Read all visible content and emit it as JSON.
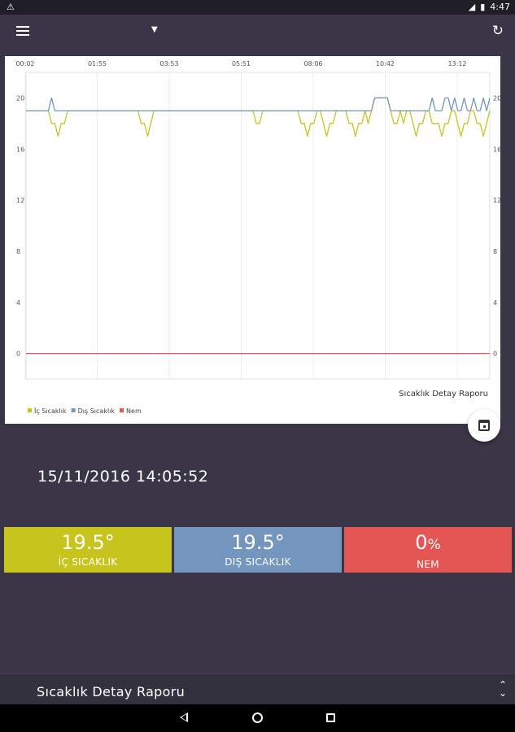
{
  "status_bar": {
    "time": "4:47",
    "warning_icon": "warning-icon",
    "signal_icon": "signal-off-icon",
    "battery_icon": "battery-icon"
  },
  "app_bar": {
    "menu_icon": "hamburger-menu-icon",
    "dropdown_icon": "caret-down-icon",
    "refresh_icon": "refresh-icon"
  },
  "chart_data": {
    "type": "line",
    "x_ticks": [
      "00:02",
      "01:55",
      "03:53",
      "05:51",
      "08:06",
      "10:42",
      "13:12"
    ],
    "y_ticks": [
      0,
      4,
      8,
      12,
      16,
      20
    ],
    "ylim": [
      -2,
      22
    ],
    "caption": "Sıcaklık Detay Raporu",
    "grid": "vertical",
    "legend_position": "bottom-left",
    "series": [
      {
        "name": "İç Sıcaklık",
        "color": "#c8c41e",
        "values": [
          19,
          19,
          19,
          19,
          19,
          19,
          19,
          19,
          18,
          18,
          17,
          18,
          18,
          19,
          19,
          19,
          19,
          19,
          19,
          19,
          19,
          19,
          19,
          19,
          19,
          19,
          19,
          19,
          19,
          19,
          19,
          19,
          19,
          19,
          19,
          19,
          18,
          18,
          17,
          18,
          19,
          19,
          19,
          19,
          19,
          19,
          19,
          19,
          19,
          19,
          19,
          19,
          19,
          19,
          19,
          19,
          19,
          19,
          19,
          19,
          19,
          19,
          19,
          19,
          19,
          19,
          19,
          19,
          19,
          19,
          19,
          19,
          18,
          18,
          19,
          19,
          19,
          19,
          19,
          19,
          19,
          19,
          19,
          19,
          19,
          19,
          18,
          18,
          17,
          18,
          18,
          19,
          19,
          18,
          17,
          18,
          18,
          19,
          19,
          19,
          19,
          18,
          18,
          17,
          18,
          18,
          19,
          18,
          19,
          20,
          20,
          20,
          20,
          20,
          19,
          18,
          18,
          19,
          18,
          19,
          19,
          18,
          17,
          18,
          18,
          19,
          19,
          18,
          18,
          18,
          17,
          18,
          18,
          19,
          19,
          18,
          17,
          18,
          18,
          19,
          19,
          18,
          18,
          17,
          18,
          19
        ]
      },
      {
        "name": "Dış Sıcaklık",
        "color": "#7395be",
        "values": [
          19,
          19,
          19,
          19,
          19,
          19,
          19,
          19,
          20,
          19,
          19,
          19,
          19,
          19,
          19,
          19,
          19,
          19,
          19,
          19,
          19,
          19,
          19,
          19,
          19,
          19,
          19,
          19,
          19,
          19,
          19,
          19,
          19,
          19,
          19,
          19,
          19,
          19,
          19,
          19,
          19,
          19,
          19,
          19,
          19,
          19,
          19,
          19,
          19,
          19,
          19,
          19,
          19,
          19,
          19,
          19,
          19,
          19,
          19,
          19,
          19,
          19,
          19,
          19,
          19,
          19,
          19,
          19,
          19,
          19,
          19,
          19,
          19,
          19,
          19,
          19,
          19,
          19,
          19,
          19,
          19,
          19,
          19,
          19,
          19,
          19,
          19,
          19,
          19,
          19,
          19,
          19,
          19,
          19,
          19,
          19,
          19,
          19,
          19,
          19,
          19,
          19,
          19,
          19,
          19,
          19,
          19,
          19,
          19,
          20,
          20,
          20,
          20,
          20,
          19,
          19,
          19,
          19,
          19,
          19,
          19,
          19,
          19,
          19,
          19,
          19,
          19,
          20,
          19,
          19,
          19,
          20,
          20,
          19,
          20,
          19,
          19,
          20,
          19,
          19,
          20,
          19,
          19,
          20,
          19,
          20
        ]
      },
      {
        "name": "Nem",
        "color": "#e35653",
        "values": [
          0,
          0,
          0,
          0,
          0,
          0,
          0,
          0,
          0,
          0,
          0,
          0,
          0,
          0,
          0,
          0,
          0,
          0,
          0,
          0,
          0,
          0,
          0,
          0,
          0,
          0,
          0,
          0,
          0,
          0,
          0,
          0,
          0,
          0,
          0,
          0,
          0,
          0,
          0,
          0,
          0,
          0,
          0,
          0,
          0,
          0,
          0,
          0,
          0,
          0,
          0,
          0,
          0,
          0,
          0,
          0,
          0,
          0,
          0,
          0,
          0,
          0,
          0,
          0,
          0,
          0,
          0,
          0,
          0,
          0,
          0,
          0,
          0,
          0,
          0,
          0,
          0,
          0,
          0,
          0,
          0,
          0,
          0,
          0,
          0,
          0,
          0,
          0,
          0,
          0,
          0,
          0,
          0,
          0,
          0,
          0,
          0,
          0,
          0,
          0,
          0,
          0,
          0,
          0,
          0,
          0,
          0,
          0,
          0,
          0,
          0,
          0,
          0,
          0,
          0,
          0,
          0,
          0,
          0,
          0,
          0,
          0,
          0,
          0,
          0,
          0,
          0,
          0,
          0,
          0,
          0,
          0,
          0,
          0,
          0,
          0,
          0,
          0,
          0,
          0,
          0,
          0,
          0,
          0,
          0,
          0
        ]
      }
    ]
  },
  "fab": {
    "icon": "calendar-icon"
  },
  "timestamp": "15/11/2016 14:05:52",
  "tiles": [
    {
      "value": "19.5",
      "unit": "°",
      "label": "İÇ SICAKLIK",
      "color": "#c8c41e"
    },
    {
      "value": "19.5",
      "unit": "°",
      "label": "DIŞ SICAKLIK",
      "color": "#7395be"
    },
    {
      "value": "0",
      "unit": "%",
      "label": "NEM",
      "color": "#e35653"
    }
  ],
  "bottom_bar": {
    "title": "Sıcaklık Detay Raporu",
    "collapse_icon": "collapse-icon"
  },
  "nav_bar": {
    "back_icon": "back-icon",
    "home_icon": "home-icon",
    "recents_icon": "recents-icon"
  }
}
